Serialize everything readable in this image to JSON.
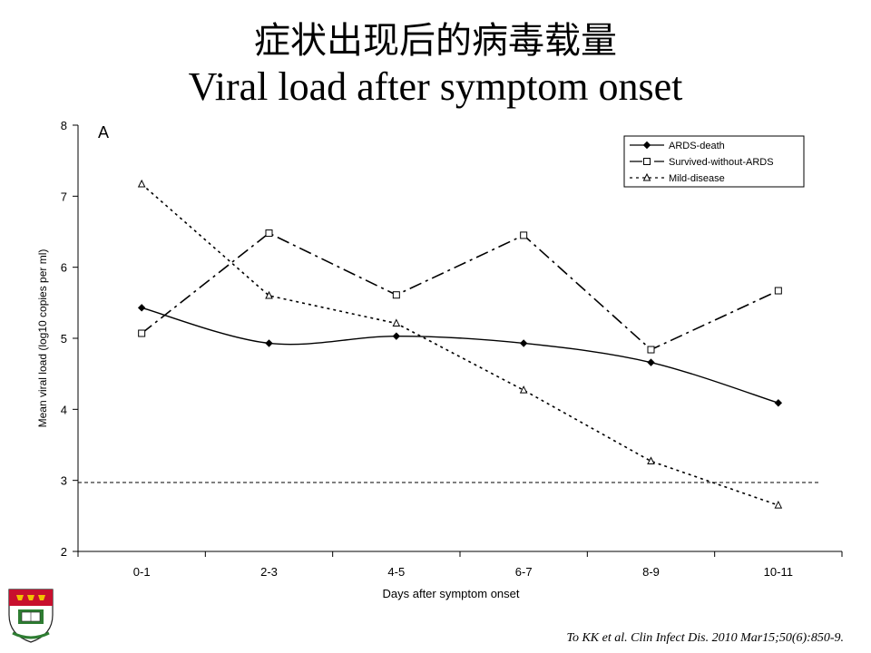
{
  "slide": {
    "title_cn": "症状出现后的病毒载量",
    "title_en": "Viral load after symptom onset",
    "citation": "To KK et al. Clin Infect Dis. 2010 Mar15;50(6):850-9."
  },
  "chart_data": {
    "type": "line",
    "panel_label": "A",
    "categories": [
      "0-1",
      "2-3",
      "4-5",
      "6-7",
      "8-9",
      "10-11"
    ],
    "xlabel": "Days after symptom onset",
    "ylabel": "Mean viral load (log10 copies per ml)",
    "ylim": [
      2,
      8
    ],
    "yticks": [
      2,
      3,
      4,
      5,
      6,
      7,
      8
    ],
    "grid": false,
    "legend_position": "top-right",
    "reference_line": 2.97,
    "series": [
      {
        "name": "ARDS-death",
        "values": [
          5.43,
          4.93,
          5.03,
          4.93,
          4.66,
          4.09
        ],
        "marker": "diamond",
        "dash": "solid"
      },
      {
        "name": "Survived-without-ARDS",
        "values": [
          5.07,
          6.48,
          5.61,
          6.45,
          4.84,
          5.67
        ],
        "marker": "square",
        "dash": "dashdot"
      },
      {
        "name": "Mild-disease",
        "values": [
          7.17,
          5.6,
          5.21,
          4.27,
          3.27,
          2.65
        ],
        "marker": "triangle",
        "dash": "dotted"
      }
    ]
  }
}
